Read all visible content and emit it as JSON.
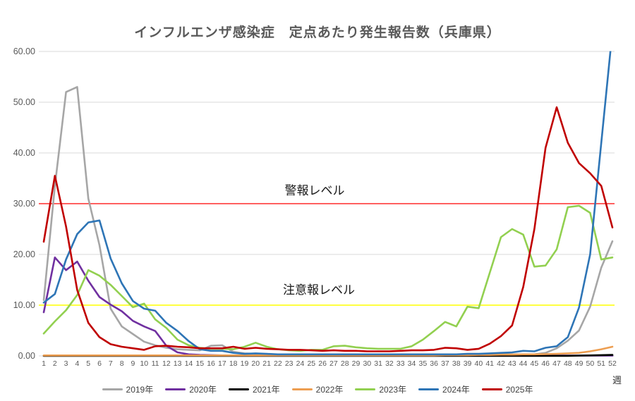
{
  "chart_title": "インフルエンザ感染症　定点あたり発生報告数（兵庫県）",
  "x_unit_label": "週",
  "chart_data": {
    "type": "line",
    "title": "インフルエンザ感染症　定点あたり発生報告数（兵庫県）",
    "xlabel": "週",
    "ylabel": "",
    "ylim": [
      0,
      60
    ],
    "grid": true,
    "grid_color": "#d9d9d9",
    "legend_position": "bottom",
    "ytick_labels": [
      "0.00",
      "10.00",
      "20.00",
      "30.00",
      "40.00",
      "50.00",
      "60.00"
    ],
    "ytick_values": [
      0,
      10,
      20,
      30,
      40,
      50,
      60
    ],
    "x": [
      1,
      2,
      3,
      4,
      5,
      6,
      7,
      8,
      9,
      10,
      11,
      12,
      13,
      14,
      15,
      16,
      17,
      18,
      19,
      20,
      21,
      22,
      23,
      24,
      25,
      26,
      27,
      28,
      29,
      30,
      31,
      32,
      33,
      34,
      35,
      36,
      37,
      38,
      39,
      40,
      41,
      42,
      43,
      44,
      45,
      46,
      47,
      48,
      49,
      50,
      51,
      52
    ],
    "reference_lines": [
      {
        "label": "警報レベル",
        "value": 30,
        "color": "#ff0000"
      },
      {
        "label": "注意報レベル",
        "value": 10,
        "color": "#ffff00"
      }
    ],
    "series": [
      {
        "name": "2019年",
        "color": "#a6a6a6",
        "values": [
          11,
          33.5,
          52,
          53,
          31,
          21.8,
          9.3,
          5.8,
          4.3,
          2.8,
          2.1,
          1.6,
          1.3,
          1.2,
          1.1,
          2.0,
          2.1,
          0.8,
          0.5,
          0.4,
          0.3,
          0.3,
          0.3,
          0.2,
          0.2,
          0.2,
          0.2,
          0.2,
          0.2,
          0.2,
          0.2,
          0.2,
          0.2,
          0.2,
          0.2,
          0.2,
          0.3,
          0.3,
          0.3,
          0.3,
          0.3,
          0.3,
          0.3,
          0.3,
          0.3,
          0.6,
          1.5,
          3.0,
          5.0,
          9.7,
          17.4,
          22.6
        ]
      },
      {
        "name": "2020年",
        "color": "#7030a0",
        "values": [
          8.6,
          19.4,
          16.9,
          18.6,
          14.8,
          11.6,
          10.1,
          8.8,
          6.9,
          5.8,
          4.9,
          2.0,
          0.7,
          0.3,
          0.2,
          0.15,
          0.1,
          0.1,
          0.1,
          0.1,
          0.1,
          0.1,
          0.1,
          0.1,
          0.1,
          0.1,
          0.1,
          0.1,
          0.1,
          0.1,
          0.05,
          0.05,
          0.05,
          0.05,
          0.05,
          0.05,
          0.05,
          0.05,
          0.05,
          0.05,
          0.05,
          0.05,
          0.05,
          0.05,
          0.05,
          0.05,
          0.05,
          0.05,
          0.05,
          0.05,
          0.05,
          0.05
        ]
      },
      {
        "name": "2021年",
        "color": "#000000",
        "values": [
          0.02,
          0.02,
          0.02,
          0.02,
          0.02,
          0.02,
          0.02,
          0.02,
          0.02,
          0.02,
          0.02,
          0.02,
          0.02,
          0.02,
          0.02,
          0.02,
          0.02,
          0.02,
          0.02,
          0.02,
          0.02,
          0.02,
          0.02,
          0.02,
          0.02,
          0.02,
          0.02,
          0.02,
          0.02,
          0.02,
          0.02,
          0.02,
          0.02,
          0.02,
          0.02,
          0.02,
          0.02,
          0.02,
          0.02,
          0.02,
          0.02,
          0.02,
          0.02,
          0.02,
          0.02,
          0.02,
          0.02,
          0.02,
          0.05,
          0.1,
          0.15,
          0.2
        ]
      },
      {
        "name": "2022年",
        "color": "#ed9e51",
        "values": [
          0.1,
          0.1,
          0.1,
          0.1,
          0.1,
          0.1,
          0.1,
          0.1,
          0.1,
          0.1,
          0.1,
          0.1,
          0.1,
          0.1,
          0.1,
          0.1,
          0.1,
          0.1,
          0.1,
          0.1,
          0.1,
          0.1,
          0.1,
          0.1,
          0.1,
          0.1,
          0.1,
          0.1,
          0.1,
          0.1,
          0.1,
          0.1,
          0.1,
          0.1,
          0.1,
          0.1,
          0.15,
          0.15,
          0.15,
          0.2,
          0.2,
          0.25,
          0.25,
          0.3,
          0.3,
          0.35,
          0.4,
          0.5,
          0.6,
          0.9,
          1.3,
          1.8
        ]
      },
      {
        "name": "2023年",
        "color": "#92d050",
        "values": [
          4.4,
          6.8,
          9.0,
          12.0,
          16.9,
          15.8,
          14.0,
          11.8,
          9.6,
          10.3,
          7.2,
          5.5,
          3.2,
          2.1,
          1.6,
          1.4,
          1.4,
          1.3,
          1.8,
          2.6,
          1.8,
          1.3,
          1.1,
          1.0,
          1.2,
          1.2,
          1.9,
          2.0,
          1.7,
          1.5,
          1.4,
          1.4,
          1.4,
          1.9,
          3.2,
          4.9,
          6.7,
          5.8,
          9.7,
          9.4,
          16.4,
          23.4,
          25.0,
          23.9,
          17.6,
          17.8,
          21.0,
          29.3,
          29.6,
          28.2,
          19.0,
          19.4
        ]
      },
      {
        "name": "2024年",
        "color": "#2e75b6",
        "values": [
          10.5,
          12.2,
          19.0,
          24.0,
          26.3,
          26.7,
          19.2,
          14.3,
          10.8,
          9.3,
          8.9,
          6.5,
          4.9,
          2.9,
          1.3,
          1.0,
          1.0,
          0.6,
          0.4,
          0.5,
          0.4,
          0.3,
          0.3,
          0.3,
          0.3,
          0.3,
          0.3,
          0.3,
          0.3,
          0.3,
          0.3,
          0.3,
          0.3,
          0.3,
          0.3,
          0.3,
          0.3,
          0.3,
          0.4,
          0.4,
          0.5,
          0.6,
          0.7,
          1.0,
          0.9,
          1.6,
          1.9,
          3.7,
          9.5,
          20.0,
          42.0,
          64.0
        ]
      },
      {
        "name": "2025年",
        "color": "#c00000",
        "values": [
          22.5,
          35.5,
          25.5,
          13.0,
          6.5,
          3.7,
          2.3,
          1.8,
          1.5,
          1.2,
          1.9,
          2.0,
          1.8,
          1.7,
          1.5,
          1.5,
          1.5,
          1.8,
          1.4,
          1.6,
          1.4,
          1.3,
          1.2,
          1.2,
          1.1,
          1.0,
          1.1,
          1.0,
          1.0,
          0.9,
          0.9,
          0.9,
          1.0,
          1.1,
          1.1,
          1.2,
          1.6,
          1.5,
          1.2,
          1.4,
          2.4,
          3.9,
          6.0,
          13.6,
          25.0,
          41.0,
          49.0,
          42.0,
          38.0,
          36.0,
          33.5,
          25.3
        ]
      }
    ]
  }
}
